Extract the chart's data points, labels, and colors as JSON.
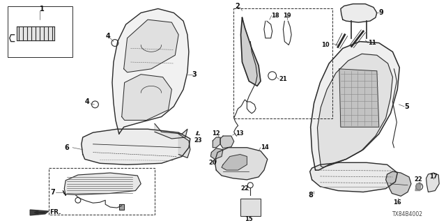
{
  "bg_color": "#ffffff",
  "line_color": "#2a2a2a",
  "text_color": "#111111",
  "fig_width": 6.4,
  "fig_height": 3.2,
  "part_code": "TX84B4002",
  "font_size": 7.0,
  "small_font": 6.0
}
